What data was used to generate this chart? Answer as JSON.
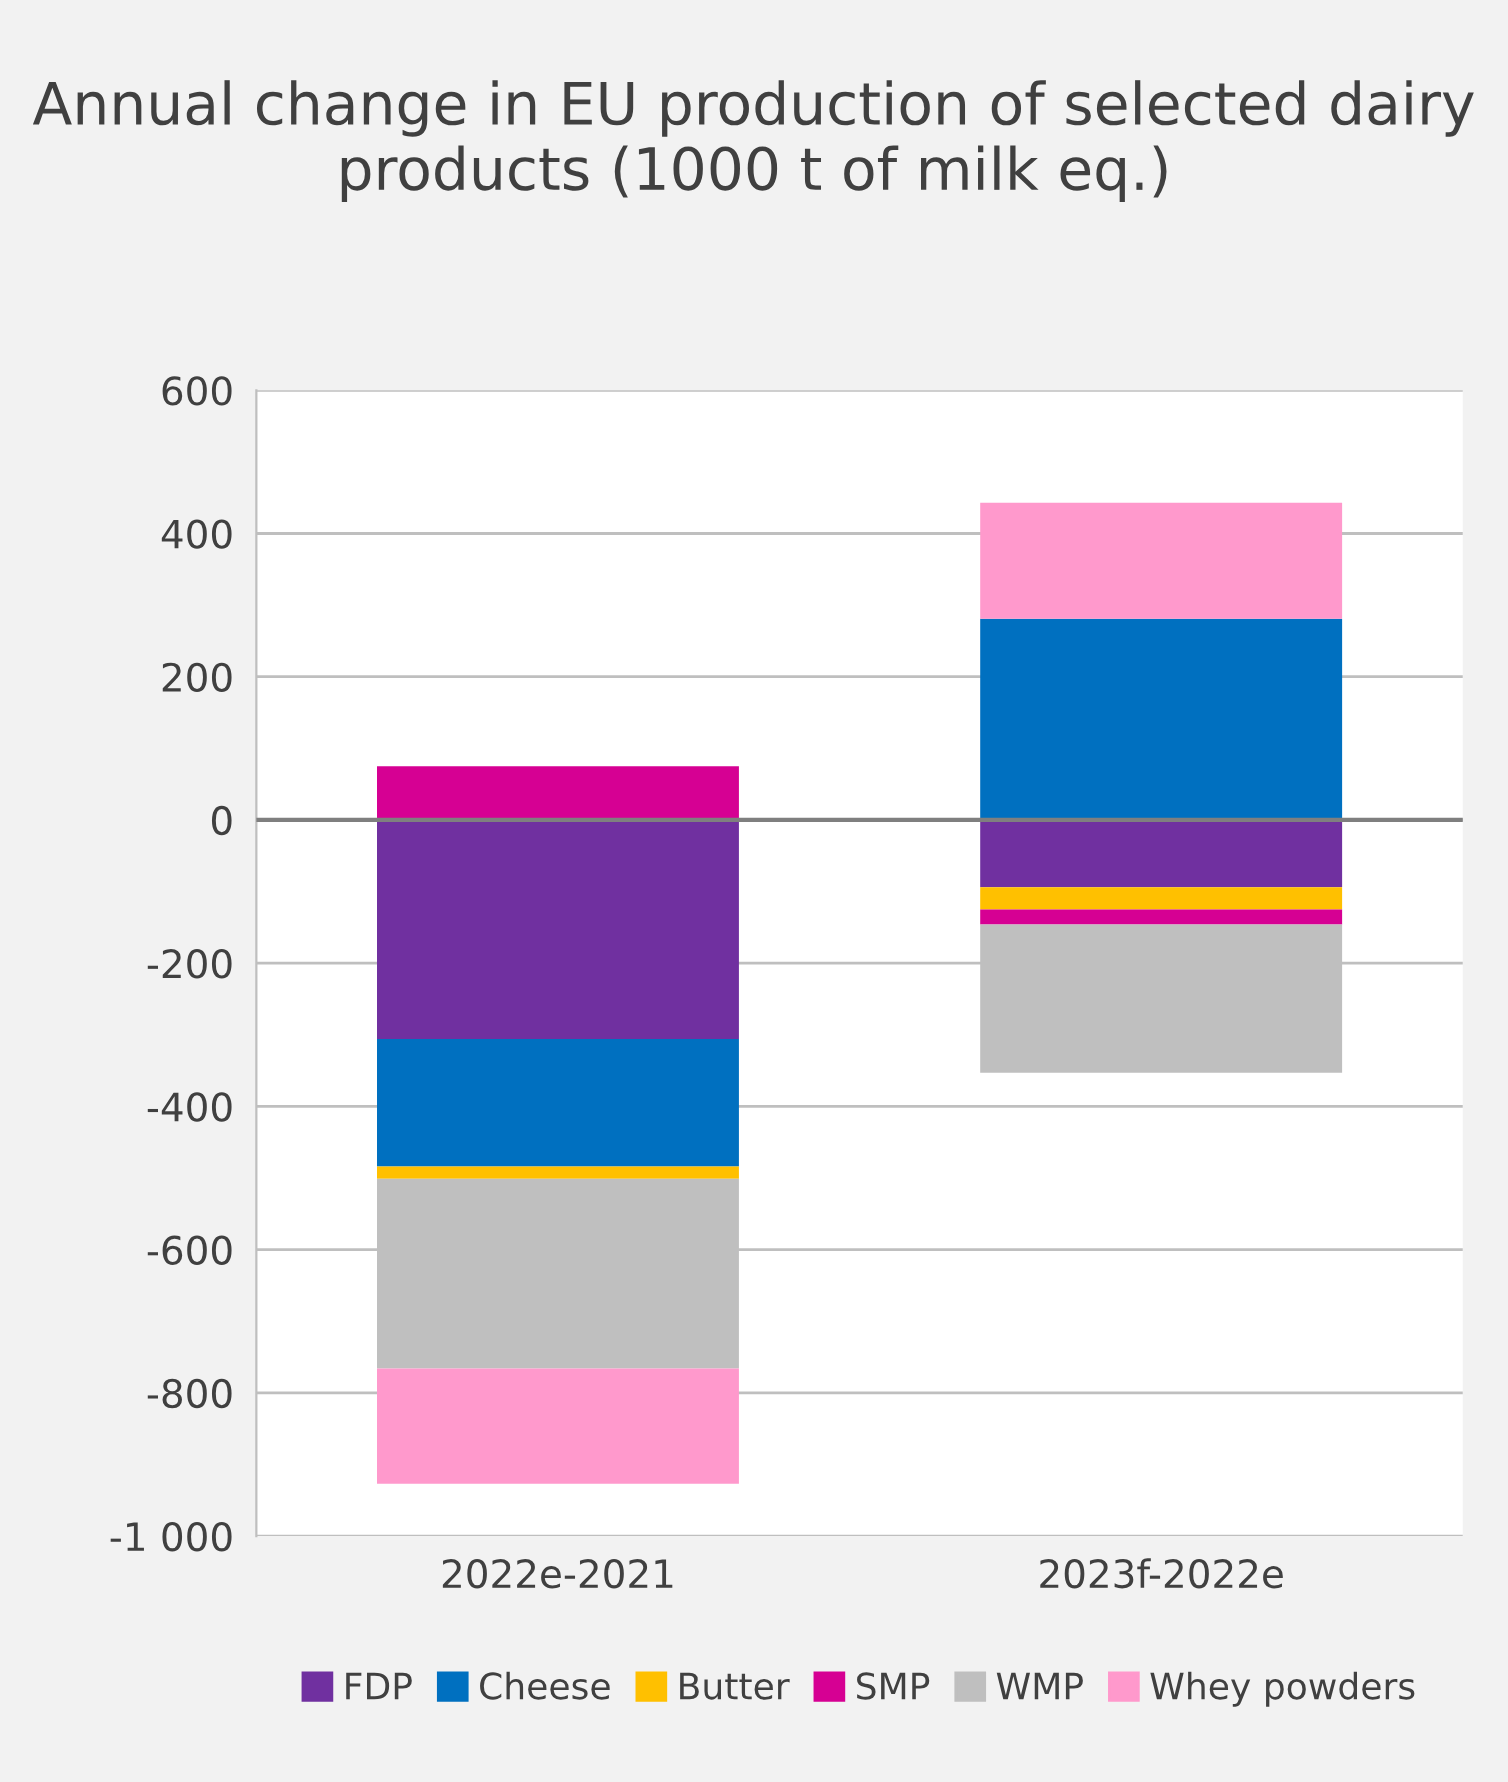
{
  "chart_data": {
    "type": "bar",
    "stacked": true,
    "title": "Annual change in EU production of selected dairy products (1000 t of milk eq.)",
    "categories": [
      "2022e-2021",
      "2023f-2022e"
    ],
    "series": [
      {
        "name": "FDP",
        "color": "#7030a0",
        "values": [
          -306,
          -94
        ]
      },
      {
        "name": "Cheese",
        "color": "#0070c0",
        "values": [
          -178,
          281
        ]
      },
      {
        "name": "Butter",
        "color": "#ffc000",
        "values": [
          -17,
          -31
        ]
      },
      {
        "name": "SMP",
        "color": "#d60093",
        "values": [
          75,
          -21
        ]
      },
      {
        "name": "WMP",
        "color": "#bfbfbf",
        "values": [
          -265,
          -207
        ]
      },
      {
        "name": "Whey powders",
        "color": "#ff99cc",
        "values": [
          -161,
          162
        ]
      }
    ],
    "ylim": [
      -1000,
      600
    ],
    "yticks": [
      {
        "value": -1000,
        "label": "-1 000"
      },
      -800,
      -600,
      -400,
      -200,
      0,
      200,
      400,
      600
    ],
    "grid": "y",
    "legend": "bottom"
  }
}
